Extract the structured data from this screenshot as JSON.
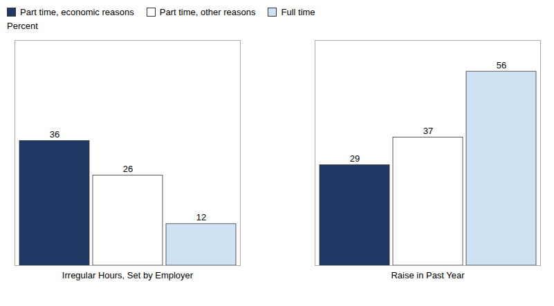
{
  "chart_data": {
    "type": "bar",
    "categories": [
      "Irregular Hours, Set by Employer",
      "Raise in Past Year"
    ],
    "series": [
      {
        "name": "Part time, economic reasons",
        "color": "#1f3864",
        "values": [
          36,
          29
        ]
      },
      {
        "name": "Part time, other reasons",
        "color": "#ffffff",
        "values": [
          26,
          37
        ]
      },
      {
        "name": "Full time",
        "color": "#cfe2f3",
        "values": [
          12,
          56
        ]
      }
    ],
    "ylabel": "Percent",
    "ylim": [
      0,
      65
    ],
    "tick_labels": "x",
    "data_labels": true,
    "legend": "upper left",
    "grid": false
  }
}
